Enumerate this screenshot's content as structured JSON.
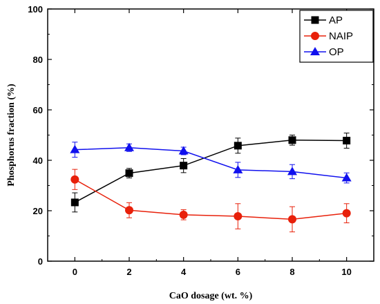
{
  "chart_data": {
    "type": "line",
    "title": "",
    "xlabel": "CaO dosage (wt. %)",
    "ylabel": "Phosphorus fraction (%)",
    "xlim": [
      -1,
      11
    ],
    "ylim": [
      0,
      100
    ],
    "xticks": [
      0,
      2,
      4,
      6,
      8,
      10
    ],
    "yticks": [
      0,
      20,
      40,
      60,
      80,
      100
    ],
    "x": [
      0,
      2,
      4,
      6,
      8,
      10
    ],
    "grid": false,
    "legend_position": "top-right",
    "series": [
      {
        "name": "AP",
        "color": "#000000",
        "marker": "square",
        "values": [
          23.3,
          34.9,
          37.9,
          45.8,
          48.0,
          47.8
        ],
        "errors": [
          3.8,
          1.9,
          2.8,
          3.0,
          2.0,
          3.0
        ]
      },
      {
        "name": "NAIP",
        "color": "#e8200a",
        "marker": "circle",
        "values": [
          32.4,
          20.2,
          18.4,
          17.8,
          16.6,
          19.0
        ],
        "errors": [
          4.0,
          3.0,
          2.0,
          5.0,
          5.0,
          3.8
        ]
      },
      {
        "name": "OP",
        "color": "#1010ee",
        "marker": "triangle",
        "values": [
          44.2,
          45.0,
          43.7,
          36.2,
          35.5,
          33.0
        ],
        "errors": [
          3.0,
          1.5,
          1.5,
          3.0,
          2.8,
          2.0
        ]
      }
    ]
  }
}
